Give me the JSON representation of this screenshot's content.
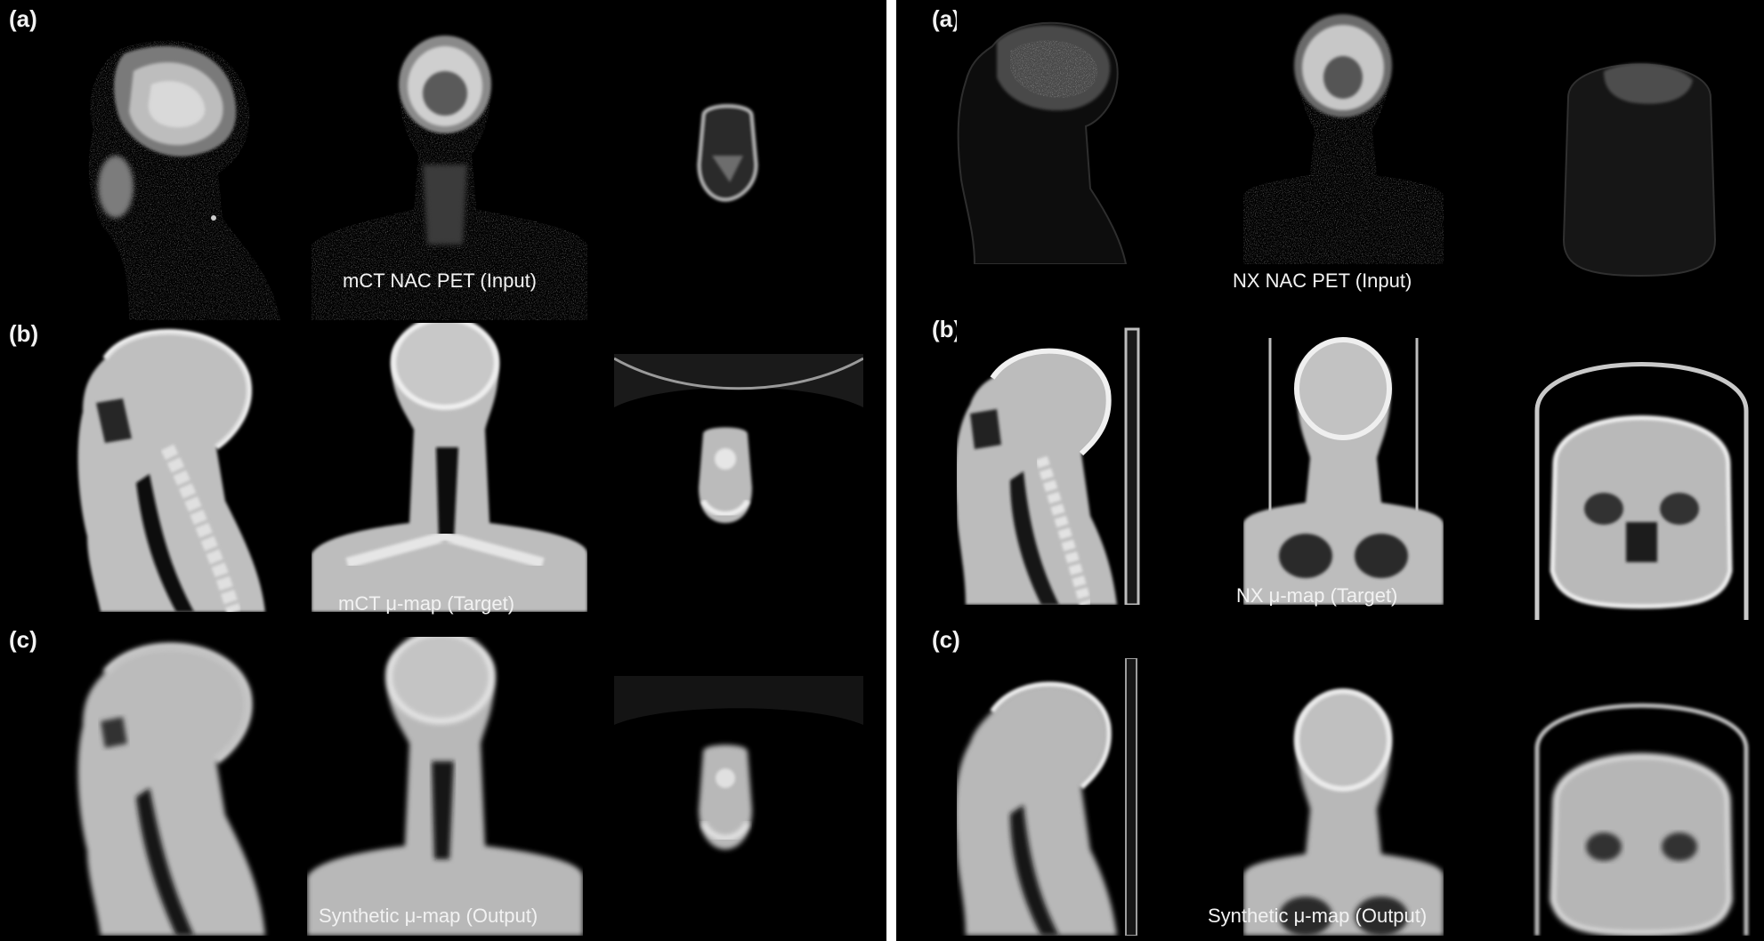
{
  "left": {
    "row_labels": [
      "(a)",
      "(b)",
      "(c)"
    ],
    "captions": [
      "mCT NAC PET (Input)",
      "mCT μ-map (Target)",
      "Synthetic μ-map (Output)"
    ]
  },
  "right": {
    "row_labels": [
      "(a)",
      "(b)",
      "(c)"
    ],
    "captions": [
      "NX NAC PET (Input)",
      "NX μ-map (Target)",
      "Synthetic μ-map (Output)"
    ]
  }
}
